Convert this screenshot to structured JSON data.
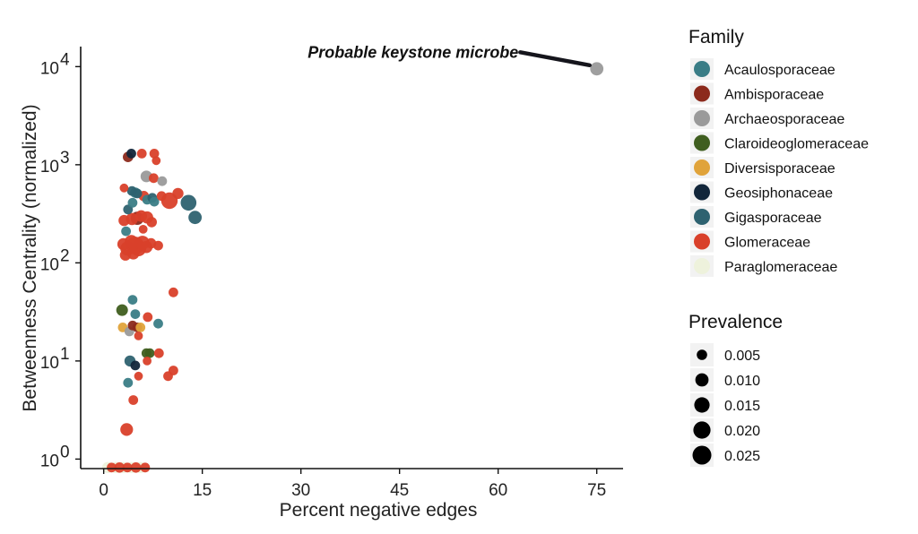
{
  "chart_data": {
    "type": "scatter",
    "xlabel": "Percent negative edges",
    "ylabel": "Betweenness Centrality (normalized)",
    "x_ticks": [
      "0",
      "15",
      "30",
      "45",
      "60",
      "75"
    ],
    "x_tick_values": [
      0,
      15,
      30,
      45,
      60,
      75
    ],
    "y_ticks": [
      {
        "base": "10",
        "exp": "0",
        "value": 1
      },
      {
        "base": "10",
        "exp": "1",
        "value": 10
      },
      {
        "base": "10",
        "exp": "2",
        "value": 100
      },
      {
        "base": "10",
        "exp": "3",
        "value": 1000
      },
      {
        "base": "10",
        "exp": "4",
        "value": 10000
      }
    ],
    "xlim": [
      -3.5,
      79
    ],
    "ylim": [
      0.8,
      16000
    ],
    "y_scale": "log",
    "grid": false,
    "annotation": {
      "text": "Probable keystone microbe",
      "x": 75,
      "y": 9500,
      "arrow_from_x": 62,
      "arrow_from_y": 14000
    },
    "legend_family": {
      "title": "Family",
      "placement": "right",
      "entries": [
        {
          "label": "Acaulosporaceae",
          "color": "#3a7d86"
        },
        {
          "label": "Ambisporaceae",
          "color": "#8c2a1c"
        },
        {
          "label": "Archaeosporaceae",
          "color": "#9a9a9a"
        },
        {
          "label": "Claroideoglomeraceae",
          "color": "#3f5e1f"
        },
        {
          "label": "Diversisporaceae",
          "color": "#e0a33a"
        },
        {
          "label": "Geosiphonaceae",
          "color": "#12263a"
        },
        {
          "label": "Gigasporaceae",
          "color": "#2e6270"
        },
        {
          "label": "Glomeraceae",
          "color": "#d9402a"
        },
        {
          "label": "Paraglomeraceae",
          "color": "#eef2dc"
        }
      ]
    },
    "legend_prevalence": {
      "title": "Prevalence",
      "entries": [
        {
          "label": "0.005",
          "value": 0.005
        },
        {
          "label": "0.010",
          "value": 0.01
        },
        {
          "label": "0.015",
          "value": 0.015
        },
        {
          "label": "0.020",
          "value": 0.02
        },
        {
          "label": "0.025",
          "value": 0.025
        }
      ]
    },
    "points": [
      {
        "x": 75,
        "y": 9500,
        "family": "Archaeosporaceae",
        "prevalence": 0.01
      },
      {
        "x": 3.7,
        "y": 1200,
        "family": "Ambisporaceae",
        "prevalence": 0.005
      },
      {
        "x": 4.2,
        "y": 1300,
        "family": "Geosiphonaceae",
        "prevalence": 0.004
      },
      {
        "x": 5.8,
        "y": 1300,
        "family": "Glomeraceae",
        "prevalence": 0.004
      },
      {
        "x": 7.7,
        "y": 1300,
        "family": "Glomeraceae",
        "prevalence": 0.004
      },
      {
        "x": 8.0,
        "y": 1100,
        "family": "Glomeraceae",
        "prevalence": 0.003
      },
      {
        "x": 6.5,
        "y": 760,
        "family": "Archaeosporaceae",
        "prevalence": 0.007
      },
      {
        "x": 7.6,
        "y": 730,
        "family": "Glomeraceae",
        "prevalence": 0.004
      },
      {
        "x": 8.9,
        "y": 680,
        "family": "Archaeosporaceae",
        "prevalence": 0.004
      },
      {
        "x": 3.1,
        "y": 580,
        "family": "Glomeraceae",
        "prevalence": 0.003
      },
      {
        "x": 4.3,
        "y": 540,
        "family": "Gigasporaceae",
        "prevalence": 0.004
      },
      {
        "x": 4.8,
        "y": 520,
        "family": "Acaulosporaceae",
        "prevalence": 0.005
      },
      {
        "x": 5.1,
        "y": 510,
        "family": "Gigasporaceae",
        "prevalence": 0.004
      },
      {
        "x": 6.1,
        "y": 480,
        "family": "Glomeraceae",
        "prevalence": 0.005
      },
      {
        "x": 6.6,
        "y": 440,
        "family": "Acaulosporaceae",
        "prevalence": 0.004
      },
      {
        "x": 7.4,
        "y": 460,
        "family": "Gigasporaceae",
        "prevalence": 0.004
      },
      {
        "x": 7.7,
        "y": 420,
        "family": "Acaulosporaceae",
        "prevalence": 0.004
      },
      {
        "x": 8.8,
        "y": 480,
        "family": "Glomeraceae",
        "prevalence": 0.004
      },
      {
        "x": 10.0,
        "y": 430,
        "family": "Glomeraceae",
        "prevalence": 0.018
      },
      {
        "x": 11.3,
        "y": 510,
        "family": "Glomeraceae",
        "prevalence": 0.006
      },
      {
        "x": 12.9,
        "y": 410,
        "family": "Gigasporaceae",
        "prevalence": 0.016
      },
      {
        "x": 13.9,
        "y": 290,
        "family": "Gigasporaceae",
        "prevalence": 0.01
      },
      {
        "x": 3.7,
        "y": 350,
        "family": "Gigasporaceae",
        "prevalence": 0.004
      },
      {
        "x": 4.4,
        "y": 410,
        "family": "Acaulosporaceae",
        "prevalence": 0.004
      },
      {
        "x": 3.1,
        "y": 270,
        "family": "Glomeraceae",
        "prevalence": 0.006
      },
      {
        "x": 4.3,
        "y": 280,
        "family": "Glomeraceae",
        "prevalence": 0.008
      },
      {
        "x": 5.1,
        "y": 285,
        "family": "Ambisporaceae",
        "prevalence": 0.01
      },
      {
        "x": 5.7,
        "y": 300,
        "family": "Glomeraceae",
        "prevalence": 0.007
      },
      {
        "x": 6.6,
        "y": 290,
        "family": "Glomeraceae",
        "prevalence": 0.008
      },
      {
        "x": 7.3,
        "y": 260,
        "family": "Glomeraceae",
        "prevalence": 0.005
      },
      {
        "x": 3.4,
        "y": 210,
        "family": "Acaulosporaceae",
        "prevalence": 0.004
      },
      {
        "x": 6.0,
        "y": 220,
        "family": "Glomeraceae",
        "prevalence": 0.003
      },
      {
        "x": 3.0,
        "y": 155,
        "family": "Glomeraceae",
        "prevalence": 0.008
      },
      {
        "x": 3.6,
        "y": 140,
        "family": "Glomeraceae",
        "prevalence": 0.012
      },
      {
        "x": 4.2,
        "y": 165,
        "family": "Glomeraceae",
        "prevalence": 0.01
      },
      {
        "x": 4.8,
        "y": 150,
        "family": "Glomeraceae",
        "prevalence": 0.022
      },
      {
        "x": 5.3,
        "y": 140,
        "family": "Glomeraceae",
        "prevalence": 0.015
      },
      {
        "x": 5.9,
        "y": 160,
        "family": "Glomeraceae",
        "prevalence": 0.012
      },
      {
        "x": 6.5,
        "y": 145,
        "family": "Glomeraceae",
        "prevalence": 0.008
      },
      {
        "x": 7.2,
        "y": 158,
        "family": "Glomeraceae",
        "prevalence": 0.005
      },
      {
        "x": 8.3,
        "y": 150,
        "family": "Glomeraceae",
        "prevalence": 0.004
      },
      {
        "x": 3.3,
        "y": 120,
        "family": "Glomeraceae",
        "prevalence": 0.006
      },
      {
        "x": 4.5,
        "y": 125,
        "family": "Glomeraceae",
        "prevalence": 0.008
      },
      {
        "x": 10.6,
        "y": 50,
        "family": "Glomeraceae",
        "prevalence": 0.004
      },
      {
        "x": 4.4,
        "y": 42,
        "family": "Acaulosporaceae",
        "prevalence": 0.004
      },
      {
        "x": 2.8,
        "y": 33,
        "family": "Claroideoglomeraceae",
        "prevalence": 0.007
      },
      {
        "x": 4.8,
        "y": 30,
        "family": "Acaulosporaceae",
        "prevalence": 0.004
      },
      {
        "x": 6.7,
        "y": 28,
        "family": "Glomeraceae",
        "prevalence": 0.004
      },
      {
        "x": 8.3,
        "y": 24,
        "family": "Acaulosporaceae",
        "prevalence": 0.004
      },
      {
        "x": 2.9,
        "y": 22,
        "family": "Diversisporaceae",
        "prevalence": 0.004
      },
      {
        "x": 3.9,
        "y": 20,
        "family": "Archaeosporaceae",
        "prevalence": 0.004
      },
      {
        "x": 4.4,
        "y": 23,
        "family": "Ambisporaceae",
        "prevalence": 0.004
      },
      {
        "x": 5.1,
        "y": 22,
        "family": "Ambisporaceae",
        "prevalence": 0.004
      },
      {
        "x": 5.6,
        "y": 22,
        "family": "Diversisporaceae",
        "prevalence": 0.004
      },
      {
        "x": 5.3,
        "y": 18,
        "family": "Glomeraceae",
        "prevalence": 0.003
      },
      {
        "x": 6.5,
        "y": 12,
        "family": "Claroideoglomeraceae",
        "prevalence": 0.004
      },
      {
        "x": 7.0,
        "y": 12,
        "family": "Claroideoglomeraceae",
        "prevalence": 0.004
      },
      {
        "x": 8.4,
        "y": 12,
        "family": "Glomeraceae",
        "prevalence": 0.004
      },
      {
        "x": 4.0,
        "y": 10,
        "family": "Gigasporaceae",
        "prevalence": 0.006
      },
      {
        "x": 4.8,
        "y": 9,
        "family": "Geosiphonaceae",
        "prevalence": 0.004
      },
      {
        "x": 6.6,
        "y": 10,
        "family": "Glomeraceae",
        "prevalence": 0.003
      },
      {
        "x": 10.6,
        "y": 8,
        "family": "Glomeraceae",
        "prevalence": 0.004
      },
      {
        "x": 9.8,
        "y": 7,
        "family": "Glomeraceae",
        "prevalence": 0.004
      },
      {
        "x": 3.7,
        "y": 6,
        "family": "Acaulosporaceae",
        "prevalence": 0.004
      },
      {
        "x": 5.3,
        "y": 7,
        "family": "Glomeraceae",
        "prevalence": 0.003
      },
      {
        "x": 4.5,
        "y": 4,
        "family": "Glomeraceae",
        "prevalence": 0.004
      },
      {
        "x": 3.5,
        "y": 2,
        "family": "Glomeraceae",
        "prevalence": 0.009
      },
      {
        "x": 0.6,
        "y": 0.82,
        "family": "Paraglomeraceae",
        "prevalence": 0.006
      },
      {
        "x": 1.2,
        "y": 0.82,
        "family": "Glomeraceae",
        "prevalence": 0.004
      },
      {
        "x": 1.8,
        "y": 0.82,
        "family": "Paraglomeraceae",
        "prevalence": 0.006
      },
      {
        "x": 2.4,
        "y": 0.82,
        "family": "Glomeraceae",
        "prevalence": 0.005
      },
      {
        "x": 3.0,
        "y": 0.82,
        "family": "Paraglomeraceae",
        "prevalence": 0.006
      },
      {
        "x": 3.6,
        "y": 0.82,
        "family": "Glomeraceae",
        "prevalence": 0.004
      },
      {
        "x": 4.2,
        "y": 0.82,
        "family": "Paraglomeraceae",
        "prevalence": 0.006
      },
      {
        "x": 4.9,
        "y": 0.82,
        "family": "Glomeraceae",
        "prevalence": 0.005
      },
      {
        "x": 5.6,
        "y": 0.82,
        "family": "Paraglomeraceae",
        "prevalence": 0.006
      },
      {
        "x": 6.3,
        "y": 0.82,
        "family": "Glomeraceae",
        "prevalence": 0.004
      }
    ]
  }
}
